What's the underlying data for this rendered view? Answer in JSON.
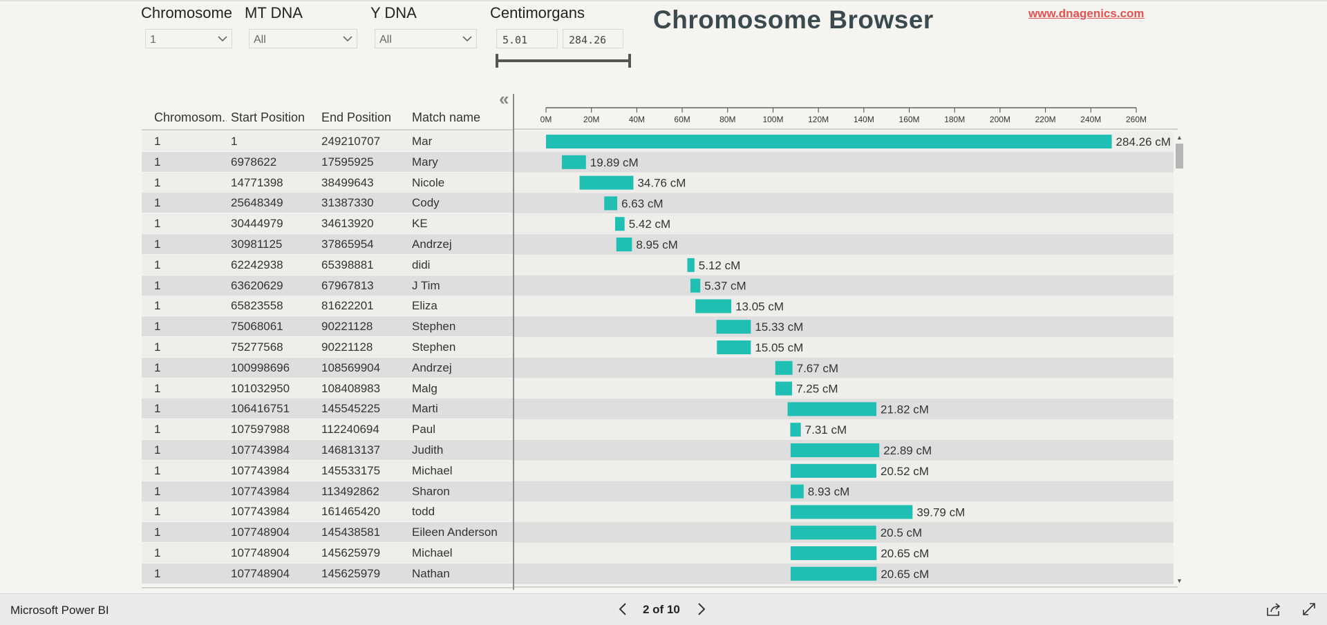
{
  "slicers": {
    "chromosome": {
      "label": "Chromosome",
      "value": "1"
    },
    "mt_dna": {
      "label": "MT DNA",
      "value": "All"
    },
    "y_dna": {
      "label": "Y DNA",
      "value": "All"
    },
    "centimorgans": {
      "label": "Centimorgans",
      "min": "5.01",
      "max": "284.26"
    }
  },
  "title": "Chromosome Browser",
  "link": "www.dnagenics.com",
  "table": {
    "columns": [
      "Chromosom...",
      "Start Position",
      "End Position",
      "Match name"
    ],
    "rows": [
      {
        "chromosome": "1",
        "start": "1",
        "end": "249210707",
        "name": "Mar",
        "cm": "284.26 cM"
      },
      {
        "chromosome": "1",
        "start": "6978622",
        "end": "17595925",
        "name": "Mary",
        "cm": "19.89 cM"
      },
      {
        "chromosome": "1",
        "start": "14771398",
        "end": "38499643",
        "name": "Nicole",
        "cm": "34.76 cM"
      },
      {
        "chromosome": "1",
        "start": "25648349",
        "end": "31387330",
        "name": "Cody",
        "cm": "6.63 cM"
      },
      {
        "chromosome": "1",
        "start": "30444979",
        "end": "34613920",
        "name": "KE",
        "cm": "5.42 cM"
      },
      {
        "chromosome": "1",
        "start": "30981125",
        "end": "37865954",
        "name": "Andrzej",
        "cm": "8.95 cM"
      },
      {
        "chromosome": "1",
        "start": "62242938",
        "end": "65398881",
        "name": "didi",
        "cm": "5.12 cM"
      },
      {
        "chromosome": "1",
        "start": "63620629",
        "end": "67967813",
        "name": "J Tim",
        "cm": "5.37 cM"
      },
      {
        "chromosome": "1",
        "start": "65823558",
        "end": "81622201",
        "name": "Eliza",
        "cm": "13.05 cM"
      },
      {
        "chromosome": "1",
        "start": "75068061",
        "end": "90221128",
        "name": "Stephen",
        "cm": "15.33 cM"
      },
      {
        "chromosome": "1",
        "start": "75277568",
        "end": "90221128",
        "name": "Stephen",
        "cm": "15.05 cM"
      },
      {
        "chromosome": "1",
        "start": "100998696",
        "end": "108569904",
        "name": "Andrzej",
        "cm": "7.67 cM"
      },
      {
        "chromosome": "1",
        "start": "101032950",
        "end": "108408983",
        "name": "Malg",
        "cm": "7.25 cM"
      },
      {
        "chromosome": "1",
        "start": "106416751",
        "end": "145545225",
        "name": "Marti",
        "cm": "21.82 cM"
      },
      {
        "chromosome": "1",
        "start": "107597988",
        "end": "112240694",
        "name": "Paul",
        "cm": "7.31 cM"
      },
      {
        "chromosome": "1",
        "start": "107743984",
        "end": "146813137",
        "name": "Judith",
        "cm": "22.89 cM"
      },
      {
        "chromosome": "1",
        "start": "107743984",
        "end": "145533175",
        "name": "Michael",
        "cm": "20.52 cM"
      },
      {
        "chromosome": "1",
        "start": "107743984",
        "end": "113492862",
        "name": "Sharon",
        "cm": "8.93 cM"
      },
      {
        "chromosome": "1",
        "start": "107743984",
        "end": "161465420",
        "name": "todd",
        "cm": "39.79 cM"
      },
      {
        "chromosome": "1",
        "start": "107748904",
        "end": "145438581",
        "name": "Eileen Anderson",
        "cm": "20.5 cM"
      },
      {
        "chromosome": "1",
        "start": "107748904",
        "end": "145625979",
        "name": "Michael",
        "cm": "20.65 cM"
      },
      {
        "chromosome": "1",
        "start": "107748904",
        "end": "145625979",
        "name": "Nathan",
        "cm": "20.65 cM"
      }
    ]
  },
  "chart_data": {
    "type": "bar",
    "orientation": "horizontal-range",
    "x_ticks": [
      "0M",
      "20M",
      "40M",
      "60M",
      "80M",
      "100M",
      "120M",
      "140M",
      "160M",
      "180M",
      "200M",
      "220M",
      "240M",
      "260M"
    ],
    "xlim": [
      0,
      260000000
    ],
    "bar_color": "#1fbfb3",
    "segments": [
      {
        "start": 1,
        "end": 249210707,
        "label": "284.26 cM"
      },
      {
        "start": 6978622,
        "end": 17595925,
        "label": "19.89 cM"
      },
      {
        "start": 14771398,
        "end": 38499643,
        "label": "34.76 cM"
      },
      {
        "start": 25648349,
        "end": 31387330,
        "label": "6.63 cM"
      },
      {
        "start": 30444979,
        "end": 34613920,
        "label": "5.42 cM"
      },
      {
        "start": 30981125,
        "end": 37865954,
        "label": "8.95 cM"
      },
      {
        "start": 62242938,
        "end": 65398881,
        "label": "5.12 cM"
      },
      {
        "start": 63620629,
        "end": 67967813,
        "label": "5.37 cM"
      },
      {
        "start": 65823558,
        "end": 81622201,
        "label": "13.05 cM"
      },
      {
        "start": 75068061,
        "end": 90221128,
        "label": "15.33 cM"
      },
      {
        "start": 75277568,
        "end": 90221128,
        "label": "15.05 cM"
      },
      {
        "start": 100998696,
        "end": 108569904,
        "label": "7.67 cM"
      },
      {
        "start": 101032950,
        "end": 108408983,
        "label": "7.25 cM"
      },
      {
        "start": 106416751,
        "end": 145545225,
        "label": "21.82 cM"
      },
      {
        "start": 107597988,
        "end": 112240694,
        "label": "7.31 cM"
      },
      {
        "start": 107743984,
        "end": 146813137,
        "label": "22.89 cM"
      },
      {
        "start": 107743984,
        "end": 145533175,
        "label": "20.52 cM"
      },
      {
        "start": 107743984,
        "end": 113492862,
        "label": "8.93 cM"
      },
      {
        "start": 107743984,
        "end": 161465420,
        "label": "39.79 cM"
      },
      {
        "start": 107748904,
        "end": 145438581,
        "label": "20.5 cM"
      },
      {
        "start": 107748904,
        "end": 145625979,
        "label": "20.65 cM"
      },
      {
        "start": 107748904,
        "end": 145625979,
        "label": "20.65 cM"
      }
    ]
  },
  "footer": {
    "brand": "Microsoft Power BI",
    "page": "2 of 10"
  },
  "colors": {
    "background": "#f5f4f0",
    "bar": "#1fbfb3",
    "title": "#3b4a4f",
    "link": "#e8504f",
    "row_even": "#dedede",
    "row_odd": "#efeeeb"
  },
  "icons": {
    "chevron": "chevron-down-icon",
    "collapse": "double-chevron-left-icon",
    "prev": "chevron-left-icon",
    "next": "chevron-right-icon",
    "share": "share-icon",
    "fullscreen": "fullscreen-icon"
  }
}
